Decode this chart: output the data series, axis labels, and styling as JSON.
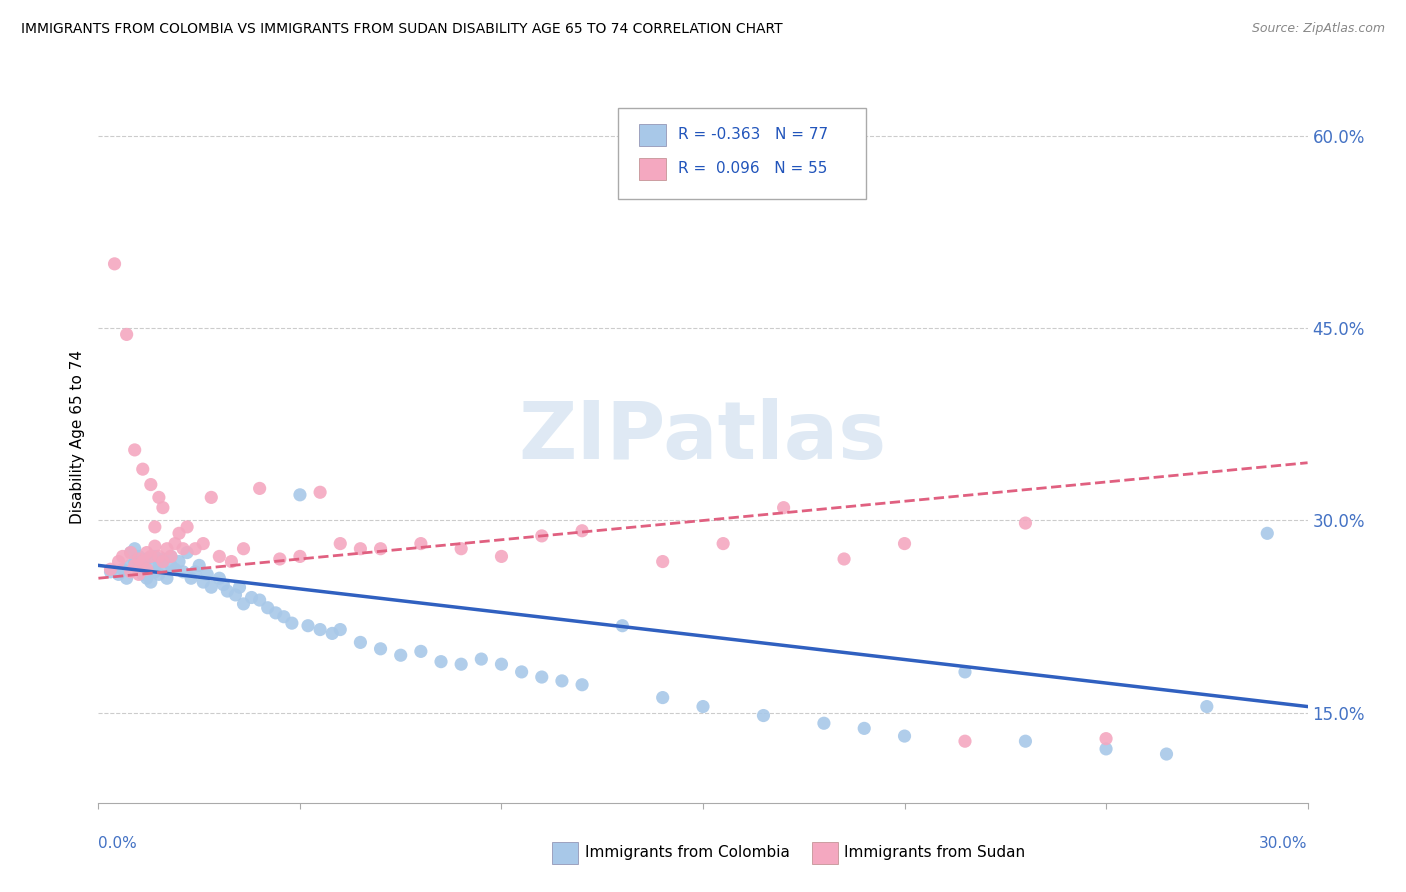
{
  "title": "IMMIGRANTS FROM COLOMBIA VS IMMIGRANTS FROM SUDAN DISABILITY AGE 65 TO 74 CORRELATION CHART",
  "source": "Source: ZipAtlas.com",
  "ylabel": "Disability Age 65 to 74",
  "xlim": [
    0.0,
    0.3
  ],
  "ylim": [
    0.08,
    0.65
  ],
  "yticks": [
    0.15,
    0.3,
    0.45,
    0.6
  ],
  "ytick_labels": [
    "15.0%",
    "30.0%",
    "45.0%",
    "60.0%"
  ],
  "colombia_color": "#a8c8e8",
  "sudan_color": "#f4a8c0",
  "colombia_line_color": "#3060c0",
  "sudan_line_color": "#e06080",
  "R_colombia": -0.363,
  "N_colombia": 77,
  "R_sudan": 0.096,
  "N_sudan": 55,
  "watermark": "ZIPatlas",
  "colombia_x": [
    0.003,
    0.005,
    0.006,
    0.007,
    0.008,
    0.008,
    0.009,
    0.009,
    0.01,
    0.01,
    0.011,
    0.011,
    0.012,
    0.012,
    0.013,
    0.013,
    0.014,
    0.014,
    0.015,
    0.015,
    0.016,
    0.016,
    0.017,
    0.018,
    0.018,
    0.019,
    0.02,
    0.021,
    0.022,
    0.023,
    0.024,
    0.025,
    0.026,
    0.027,
    0.028,
    0.03,
    0.031,
    0.032,
    0.034,
    0.035,
    0.036,
    0.038,
    0.04,
    0.042,
    0.044,
    0.046,
    0.048,
    0.05,
    0.052,
    0.055,
    0.058,
    0.06,
    0.065,
    0.07,
    0.075,
    0.08,
    0.085,
    0.09,
    0.095,
    0.1,
    0.105,
    0.11,
    0.115,
    0.12,
    0.13,
    0.14,
    0.15,
    0.165,
    0.18,
    0.19,
    0.2,
    0.215,
    0.23,
    0.25,
    0.265,
    0.275,
    0.29
  ],
  "colombia_y": [
    0.26,
    0.258,
    0.262,
    0.255,
    0.265,
    0.275,
    0.268,
    0.278,
    0.262,
    0.272,
    0.258,
    0.268,
    0.255,
    0.27,
    0.252,
    0.265,
    0.26,
    0.272,
    0.258,
    0.268,
    0.262,
    0.27,
    0.255,
    0.265,
    0.272,
    0.262,
    0.268,
    0.26,
    0.275,
    0.255,
    0.26,
    0.265,
    0.252,
    0.258,
    0.248,
    0.255,
    0.25,
    0.245,
    0.242,
    0.248,
    0.235,
    0.24,
    0.238,
    0.232,
    0.228,
    0.225,
    0.22,
    0.32,
    0.218,
    0.215,
    0.212,
    0.215,
    0.205,
    0.2,
    0.195,
    0.198,
    0.19,
    0.188,
    0.192,
    0.188,
    0.182,
    0.178,
    0.175,
    0.172,
    0.218,
    0.162,
    0.155,
    0.148,
    0.142,
    0.138,
    0.132,
    0.182,
    0.128,
    0.122,
    0.118,
    0.155,
    0.29
  ],
  "sudan_x": [
    0.003,
    0.004,
    0.005,
    0.006,
    0.007,
    0.008,
    0.008,
    0.009,
    0.009,
    0.01,
    0.01,
    0.011,
    0.011,
    0.012,
    0.012,
    0.013,
    0.013,
    0.014,
    0.014,
    0.015,
    0.015,
    0.016,
    0.016,
    0.017,
    0.018,
    0.019,
    0.02,
    0.021,
    0.022,
    0.024,
    0.026,
    0.028,
    0.03,
    0.033,
    0.036,
    0.04,
    0.045,
    0.05,
    0.055,
    0.06,
    0.065,
    0.07,
    0.08,
    0.09,
    0.1,
    0.11,
    0.12,
    0.14,
    0.155,
    0.17,
    0.185,
    0.2,
    0.215,
    0.23,
    0.25
  ],
  "sudan_y": [
    0.262,
    0.5,
    0.268,
    0.272,
    0.445,
    0.26,
    0.275,
    0.265,
    0.355,
    0.258,
    0.27,
    0.268,
    0.34,
    0.275,
    0.262,
    0.272,
    0.328,
    0.28,
    0.295,
    0.272,
    0.318,
    0.268,
    0.31,
    0.278,
    0.272,
    0.282,
    0.29,
    0.278,
    0.295,
    0.278,
    0.282,
    0.318,
    0.272,
    0.268,
    0.278,
    0.325,
    0.27,
    0.272,
    0.322,
    0.282,
    0.278,
    0.278,
    0.282,
    0.278,
    0.272,
    0.288,
    0.292,
    0.268,
    0.282,
    0.31,
    0.27,
    0.282,
    0.128,
    0.298,
    0.13
  ]
}
